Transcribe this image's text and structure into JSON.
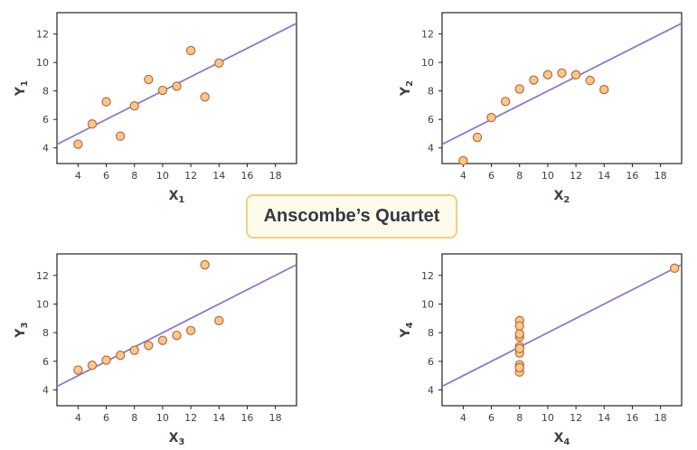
{
  "title": "Anscombe’s Quartet",
  "colors": {
    "line": "#8c78d0",
    "point_fill": "#f9c98c",
    "point_stroke": "#b96a3a",
    "axis": "#222222",
    "text": "#3a3f4b",
    "title_border": "#f0d080",
    "title_bg": "#fffbea"
  },
  "chart_data": [
    {
      "type": "scatter",
      "xlabel": "X",
      "xlabel_sub": "1",
      "ylabel": "Y",
      "ylabel_sub": "1",
      "xlim": [
        2.5,
        19.5
      ],
      "ylim": [
        2.9,
        13.5
      ],
      "xticks": [
        4,
        6,
        8,
        10,
        12,
        14,
        16,
        18
      ],
      "yticks": [
        4,
        6,
        8,
        10,
        12
      ],
      "points": [
        [
          10,
          8.04
        ],
        [
          8,
          6.95
        ],
        [
          13,
          7.58
        ],
        [
          9,
          8.81
        ],
        [
          11,
          8.33
        ],
        [
          14,
          9.96
        ],
        [
          6,
          7.24
        ],
        [
          4,
          4.26
        ],
        [
          12,
          10.84
        ],
        [
          7,
          4.82
        ],
        [
          5,
          5.68
        ]
      ],
      "fit_line": {
        "intercept": 3.0,
        "slope": 0.5
      },
      "grid": false
    },
    {
      "type": "scatter",
      "xlabel": "X",
      "xlabel_sub": "2",
      "ylabel": "Y",
      "ylabel_sub": "2",
      "xlim": [
        2.5,
        19.5
      ],
      "ylim": [
        2.9,
        13.5
      ],
      "xticks": [
        4,
        6,
        8,
        10,
        12,
        14,
        16,
        18
      ],
      "yticks": [
        4,
        6,
        8,
        10,
        12
      ],
      "points": [
        [
          10,
          9.14
        ],
        [
          8,
          8.14
        ],
        [
          13,
          8.74
        ],
        [
          9,
          8.77
        ],
        [
          11,
          9.26
        ],
        [
          14,
          8.1
        ],
        [
          6,
          6.13
        ],
        [
          4,
          3.1
        ],
        [
          12,
          9.13
        ],
        [
          7,
          7.26
        ],
        [
          5,
          4.74
        ]
      ],
      "fit_line": {
        "intercept": 3.0,
        "slope": 0.5
      },
      "grid": false
    },
    {
      "type": "scatter",
      "xlabel": "X",
      "xlabel_sub": "3",
      "ylabel": "Y",
      "ylabel_sub": "3",
      "xlim": [
        2.5,
        19.5
      ],
      "ylim": [
        2.9,
        13.5
      ],
      "xticks": [
        4,
        6,
        8,
        10,
        12,
        14,
        16,
        18
      ],
      "yticks": [
        4,
        6,
        8,
        10,
        12
      ],
      "points": [
        [
          10,
          7.46
        ],
        [
          8,
          6.77
        ],
        [
          13,
          12.74
        ],
        [
          9,
          7.11
        ],
        [
          11,
          7.81
        ],
        [
          14,
          8.84
        ],
        [
          6,
          6.08
        ],
        [
          4,
          5.39
        ],
        [
          12,
          8.15
        ],
        [
          7,
          6.42
        ],
        [
          5,
          5.73
        ]
      ],
      "fit_line": {
        "intercept": 3.0,
        "slope": 0.5
      },
      "grid": false
    },
    {
      "type": "scatter",
      "xlabel": "X",
      "xlabel_sub": "4",
      "ylabel": "Y",
      "ylabel_sub": "4",
      "xlim": [
        2.5,
        19.5
      ],
      "ylim": [
        2.9,
        13.5
      ],
      "xticks": [
        4,
        6,
        8,
        10,
        12,
        14,
        16,
        18
      ],
      "yticks": [
        4,
        6,
        8,
        10,
        12
      ],
      "points": [
        [
          8,
          6.58
        ],
        [
          8,
          5.76
        ],
        [
          8,
          7.71
        ],
        [
          8,
          8.84
        ],
        [
          8,
          8.47
        ],
        [
          8,
          7.04
        ],
        [
          8,
          5.25
        ],
        [
          19,
          12.5
        ],
        [
          8,
          5.56
        ],
        [
          8,
          7.91
        ],
        [
          8,
          6.89
        ]
      ],
      "fit_line": {
        "intercept": 3.0,
        "slope": 0.5
      },
      "grid": false
    }
  ]
}
